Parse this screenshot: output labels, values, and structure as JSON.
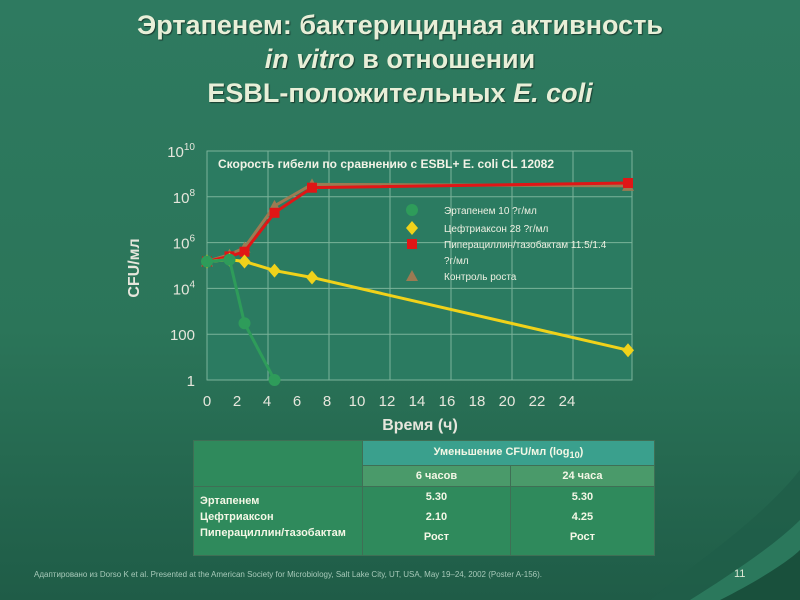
{
  "slide": {
    "title_part1": "Эртапенем: бактерицидная активность",
    "title_part2_italic": "in vitro",
    "title_part2_rest": " в отношении",
    "title_part3": "ESBL-положительных ",
    "title_part3_italic": "E. coli",
    "footnote": "Адаптировано из Dorso K et al. Presented at the American Society for Microbiology, Salt Lake City, UT, USA, May 19–24, 2002 (Poster A-156).",
    "page_number": "11"
  },
  "colors": {
    "background": "#2b7559",
    "plot_area": "#2b7b61",
    "ertapenem": "#2e9c5a",
    "ceftriaxone": "#f0d21a",
    "piperacillin": "#e01616",
    "growth_control": "#9c7a52"
  },
  "chart_data": {
    "type": "line",
    "title": "Скорость гибели по сравнению с ESBL+ E. coli CL 12082",
    "xlabel": "Время (ч)",
    "ylabel": "CFU/мл",
    "x_ticks": [
      0,
      2,
      4,
      6,
      8,
      10,
      12,
      14,
      16,
      18,
      20,
      22,
      24
    ],
    "y_ticks": [
      {
        "value": 1,
        "base": "1",
        "exp": ""
      },
      {
        "value": 100,
        "base": "100",
        "exp": ""
      },
      {
        "value": 10000,
        "base": "10",
        "exp": "4"
      },
      {
        "value": 1000000,
        "base": "10",
        "exp": "6"
      },
      {
        "value": 100000000,
        "base": "10",
        "exp": "8"
      },
      {
        "value": 10000000000,
        "base": "10",
        "exp": "10"
      }
    ],
    "y_scale": "log",
    "grid": true,
    "legend_position": "right, inside plot",
    "series": [
      {
        "name": "Эртапенем 10 ?г/мл",
        "marker": "circle",
        "color_key": "ertapenem",
        "x": [
          0,
          1.5,
          2.5,
          4.5
        ],
        "y": [
          150000,
          180000,
          300,
          1
        ]
      },
      {
        "name": "Цефтриаксон 28 ?г/мл",
        "marker": "diamond",
        "color_key": "ceftriaxone",
        "x": [
          0,
          1.5,
          2.5,
          4.5,
          7,
          28
        ],
        "y": [
          150000,
          180000,
          150000,
          60000,
          30000,
          20
        ]
      },
      {
        "name": "Пиперациллин/тазобактам 11.5/1.4 ?г/мл",
        "marker": "square",
        "color_key": "piperacillin",
        "x": [
          0,
          1.5,
          2.5,
          4.5,
          7,
          28
        ],
        "y": [
          150000,
          250000,
          400000,
          20000000,
          250000000,
          400000000
        ]
      },
      {
        "name": "Контроль роста",
        "marker": "triangle",
        "color_key": "growth_control",
        "x": [
          0,
          1.5,
          2.5,
          4.5,
          7,
          28
        ],
        "y": [
          150000,
          300000,
          600000,
          40000000,
          350000000,
          300000000
        ]
      }
    ],
    "legend_lines": [
      "Эртапенем 10 ?г/мл",
      "Цефтриаксон 28 ?г/мл",
      "Пиперациллин/тазобактам 11.5/1.4",
      "?г/мл",
      "Контроль роста"
    ]
  },
  "table": {
    "header_group": "Уменьшение CFU/мл (log",
    "header_group_sub": "10",
    "header_group_end": ")",
    "col_6h": "6 часов",
    "col_24h": "24 часа",
    "rows": [
      {
        "name": "Эртапенем",
        "h6": "5.30",
        "h24": "5.30"
      },
      {
        "name": "Цефтриаксон",
        "h6": "2.10",
        "h24": "4.25"
      },
      {
        "name": "Пиперациллин/тазобактам",
        "h6": "Рост",
        "h24": "Рост"
      }
    ]
  }
}
